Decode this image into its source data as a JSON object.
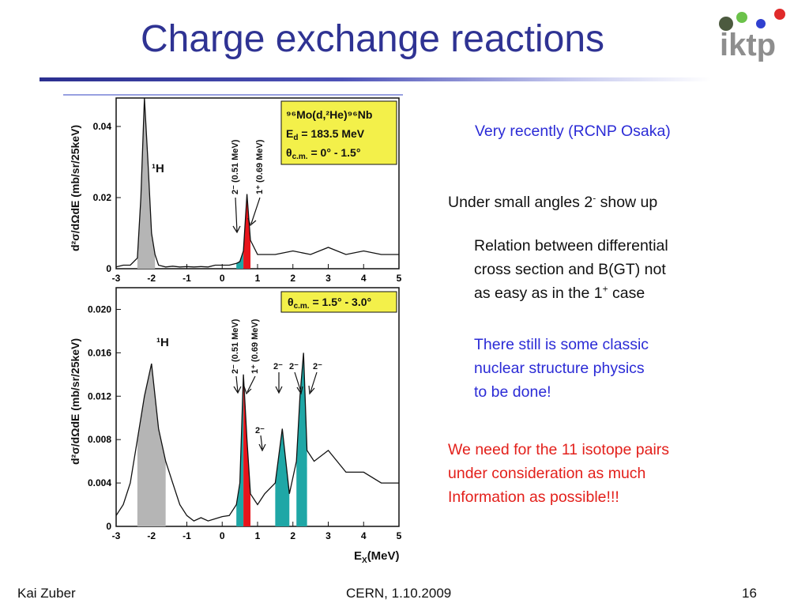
{
  "slide": {
    "title": "Charge exchange reactions",
    "logo_text": "iktp",
    "footer": {
      "author": "Kai Zuber",
      "event": "CERN, 1.10.2009",
      "page": "16"
    }
  },
  "text": {
    "recent": "Very recently (RCNP Osaka)",
    "small_angles_pre": "Under small angles 2",
    "small_angles_sup": "-",
    "small_angles_post": " show up",
    "relation_l1": "Relation between differential",
    "relation_l2": "cross section and B(GT) not",
    "relation_l3_pre": "as easy as in the 1",
    "relation_l3_sup": "+",
    "relation_l3_post": " case",
    "classic_l1": "There still is some classic",
    "classic_l2": "nuclear structure physics",
    "classic_l3": "to be done!",
    "need_l1": "We need for the 11 isotope pairs",
    "need_l2": "under consideration as much",
    "need_l3": "Information as possible!!!"
  },
  "figure": {
    "y_axis_label": "d²σ/dΩdE (mb/sr/25keV)",
    "x_axis_label": "E",
    "x_axis_sub": "X",
    "x_axis_unit": "(MeV)",
    "top_box": {
      "line1": "⁹⁶Mo(d,²He)⁹⁶Nb",
      "line2": "E",
      "line2_sub": "d",
      "line2_post": " = 183.5 MeV",
      "line3": "θ",
      "line3_sub": "c.m.",
      "line3_post": " = 0° - 1.5°"
    },
    "bottom_box": {
      "line1": "θ",
      "line1_sub": "c.m.",
      "line1_post": " = 1.5° - 3.0°"
    },
    "top_annotations": {
      "h": "¹H",
      "two_minus": "2⁻ (0.51 MeV)",
      "one_plus": "1⁺ (0.69 MeV)"
    },
    "bottom_annotations": {
      "h": "¹H",
      "two_minus": "2⁻ (0.51 MeV)",
      "one_plus": "1⁺ (0.69 MeV)",
      "two_minus_b": "2⁻",
      "two_minus_c": "2⁻",
      "two_minus_d": "2⁻",
      "two_minus_e": "2⁻"
    },
    "colors": {
      "hydrogen_fill": "#b5b5b5",
      "one_plus_fill": "#e8141b",
      "two_minus_fill": "#1fa7a6",
      "label_box": "#f3f04a"
    }
  },
  "chart_data": [
    {
      "type": "line",
      "x_ticks": [
        "-3",
        "-2",
        "-1",
        "0",
        "1",
        "2",
        "3",
        "4",
        "5"
      ],
      "y_ticks": [
        "0",
        "0.02",
        "0.04"
      ],
      "xlim": [
        -3,
        5
      ],
      "ylim": [
        0,
        0.048
      ],
      "x": [
        -3.0,
        -2.8,
        -2.6,
        -2.4,
        -2.3,
        -2.2,
        -2.1,
        -2.0,
        -1.9,
        -1.8,
        -1.6,
        -1.4,
        -1.2,
        -1.0,
        -0.8,
        -0.6,
        -0.4,
        -0.2,
        0.0,
        0.2,
        0.4,
        0.5,
        0.6,
        0.7,
        0.8,
        1.0,
        1.5,
        2.0,
        2.5,
        3.0,
        3.5,
        4.0,
        4.5,
        5.0
      ],
      "y": [
        0.0005,
        0.001,
        0.001,
        0.003,
        0.02,
        0.048,
        0.03,
        0.01,
        0.004,
        0.001,
        0.0005,
        0.0007,
        0.0005,
        0.0006,
        0.0005,
        0.0006,
        0.0005,
        0.001,
        0.001,
        0.001,
        0.0015,
        0.002,
        0.005,
        0.021,
        0.008,
        0.004,
        0.004,
        0.005,
        0.004,
        0.006,
        0.004,
        0.005,
        0.004,
        0.004
      ]
    },
    {
      "type": "line",
      "x_ticks": [
        "-3",
        "-2",
        "-1",
        "0",
        "1",
        "2",
        "3",
        "4",
        "5"
      ],
      "y_ticks": [
        "0",
        "0.004",
        "0.008",
        "0.012",
        "0.016",
        "0.020"
      ],
      "xlim": [
        -3,
        5
      ],
      "ylim": [
        0,
        0.022
      ],
      "x": [
        -3.0,
        -2.8,
        -2.6,
        -2.4,
        -2.2,
        -2.0,
        -1.8,
        -1.6,
        -1.4,
        -1.2,
        -1.0,
        -0.8,
        -0.6,
        -0.4,
        -0.2,
        0.0,
        0.2,
        0.4,
        0.5,
        0.6,
        0.7,
        0.8,
        1.0,
        1.2,
        1.5,
        1.7,
        1.9,
        2.1,
        2.2,
        2.3,
        2.4,
        2.6,
        3.0,
        3.5,
        4.0,
        4.5,
        5.0
      ],
      "y": [
        0.001,
        0.002,
        0.004,
        0.008,
        0.012,
        0.015,
        0.009,
        0.006,
        0.004,
        0.002,
        0.001,
        0.0005,
        0.0008,
        0.0005,
        0.0007,
        0.0009,
        0.001,
        0.002,
        0.004,
        0.014,
        0.008,
        0.003,
        0.002,
        0.003,
        0.004,
        0.009,
        0.003,
        0.006,
        0.012,
        0.016,
        0.007,
        0.006,
        0.007,
        0.005,
        0.005,
        0.004,
        0.004
      ]
    }
  ]
}
